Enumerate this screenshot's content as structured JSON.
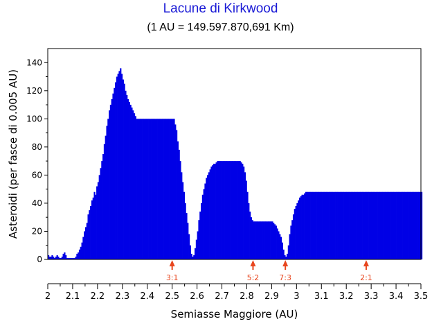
{
  "chart_data": {
    "type": "bar",
    "title": "Lacune di Kirkwood",
    "subtitle": "(1 AU = 149.597.870,691 Km)",
    "xlabel": "Semiasse Maggiore (AU)",
    "ylabel": "Asteroidi (per fasce di 0.005 AU)",
    "xlim": [
      2.0,
      3.5
    ],
    "ylim": [
      0,
      150
    ],
    "bin_width": 0.005,
    "x_ticks": [
      "2",
      "2.1",
      "2.2",
      "2.3",
      "2.4",
      "2.5",
      "2.6",
      "2.7",
      "2.8",
      "2.9",
      "3",
      "3.1",
      "3.2",
      "3.3",
      "3.4",
      "3.5"
    ],
    "y_ticks": [
      "0",
      "20",
      "40",
      "60",
      "80",
      "100",
      "120",
      "140"
    ],
    "grid": false,
    "bar_color": "#0000e6",
    "marker_color": "#e8461e",
    "resonances": [
      {
        "label": "3:1",
        "x": 2.5
      },
      {
        "label": "5:2",
        "x": 2.825
      },
      {
        "label": "7:3",
        "x": 2.955
      },
      {
        "label": "2:1",
        "x": 3.28
      }
    ],
    "series": [
      {
        "bin_start": 2.0,
        "values": [
          3,
          2,
          2,
          3,
          2,
          1,
          2,
          3,
          2,
          1,
          1,
          2,
          4,
          5,
          3,
          1,
          1,
          1,
          1,
          1,
          1,
          1,
          2,
          4,
          5,
          7,
          9,
          12,
          16,
          20,
          23,
          26,
          32,
          35,
          38,
          42,
          44,
          48,
          46,
          52,
          55,
          60,
          65,
          70,
          75,
          82,
          88,
          95,
          100,
          106,
          110,
          114,
          118,
          122,
          126,
          130,
          132,
          134,
          136,
          132,
          128,
          125,
          120,
          117,
          114,
          112,
          110,
          108,
          106,
          104,
          102,
          100,
          100,
          100,
          100,
          100,
          100,
          100,
          100,
          100,
          100,
          100,
          100,
          100,
          100,
          100,
          100,
          100,
          100,
          100,
          100,
          100,
          100,
          100,
          100,
          100,
          100,
          100,
          100,
          100,
          100,
          100,
          96,
          92,
          84,
          78,
          70,
          62,
          55,
          48,
          40,
          33,
          26,
          18,
          10,
          4,
          2,
          3,
          8,
          14,
          20,
          28,
          34,
          40,
          46,
          50,
          54,
          58,
          60,
          62,
          64,
          66,
          67,
          68,
          68,
          69,
          70,
          70,
          70,
          70,
          70,
          70,
          70,
          70,
          70,
          70,
          70,
          70,
          70,
          70,
          70,
          70,
          70,
          70,
          70,
          69,
          68,
          66,
          62,
          56,
          48,
          40,
          34,
          30,
          28,
          27,
          27,
          27,
          27,
          27,
          27,
          27,
          27,
          27,
          27,
          27,
          27,
          27,
          27,
          27,
          27,
          26,
          25,
          24,
          22,
          20,
          18,
          16,
          12,
          7,
          3,
          2,
          4,
          10,
          18,
          24,
          28,
          32,
          36,
          38,
          40,
          42,
          44,
          45,
          46,
          46,
          47,
          48,
          48,
          48,
          48,
          48,
          48,
          48,
          48,
          48,
          48,
          48,
          48,
          48,
          48,
          48,
          48,
          48,
          48,
          48,
          48,
          48,
          48,
          48,
          48,
          48,
          48,
          48,
          48,
          48,
          48,
          48,
          48,
          48,
          48,
          48,
          48,
          48,
          48,
          48,
          48,
          48,
          48,
          48,
          48,
          48,
          48,
          48,
          48,
          48,
          48,
          48,
          48,
          48,
          48,
          48,
          48,
          48,
          48,
          48,
          48,
          48,
          48,
          48,
          48,
          48,
          48,
          48,
          48,
          48,
          48,
          48,
          48,
          48,
          48,
          48,
          48,
          48,
          48,
          48,
          48,
          48,
          48,
          48,
          48,
          48,
          48,
          48,
          48,
          48,
          48,
          48,
          48,
          48,
          48
        ]
      }
    ]
  }
}
